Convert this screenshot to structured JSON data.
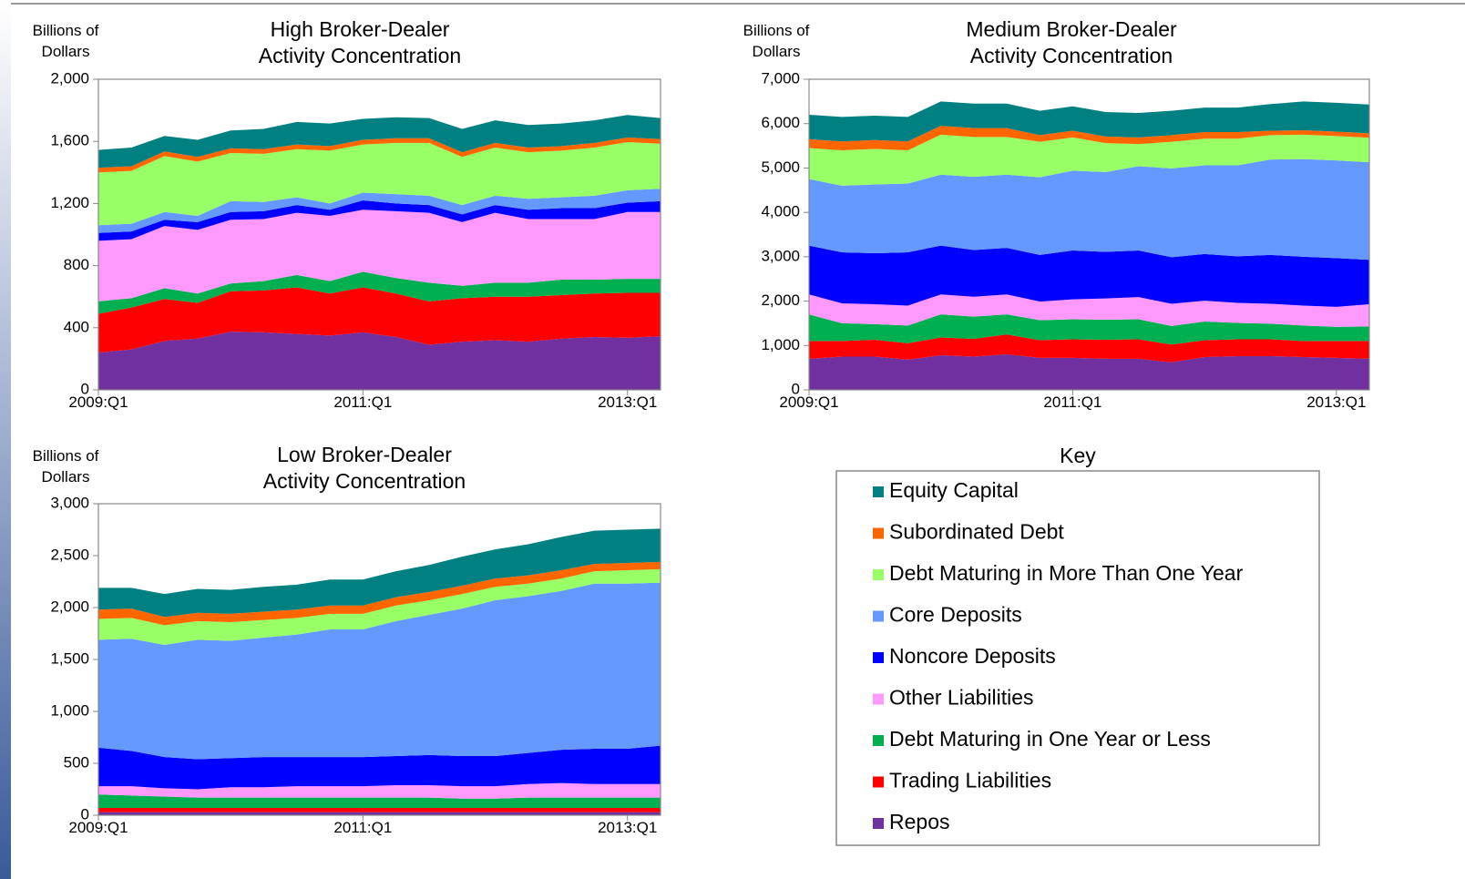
{
  "chart_data": [
    {
      "type": "stacked-area",
      "title": "High Broker-Dealer\nActivity Concentration",
      "ylabel": "Billions of\nDollars",
      "categories": [
        "2009:Q1",
        null,
        null,
        null,
        null,
        null,
        null,
        null,
        "2011:Q1",
        null,
        null,
        null,
        null,
        null,
        null,
        null,
        "2013:Q1",
        null
      ],
      "ylim": [
        0,
        2000
      ],
      "yticks": [
        0,
        400,
        800,
        {
          "value": 1200,
          "label": "1,200"
        },
        {
          "value": 1600,
          "label": "1,600"
        },
        {
          "value": 2000,
          "label": "2,000"
        }
      ],
      "series": [
        {
          "values": [
            115,
            120,
            100,
            110,
            115,
            130,
            145,
            145,
            135,
            135,
            130,
            150,
            145,
            145,
            145,
            145,
            145,
            135
          ]
        },
        {
          "values": [
            30,
            30,
            30,
            30,
            30,
            30,
            30,
            30,
            30,
            30,
            30,
            30,
            30,
            30,
            30,
            30,
            30,
            30
          ]
        },
        {
          "values": [
            340,
            340,
            360,
            350,
            310,
            310,
            310,
            340,
            310,
            330,
            340,
            310,
            310,
            300,
            300,
            310,
            310,
            290
          ]
        },
        {
          "values": [
            50,
            50,
            50,
            40,
            70,
            60,
            50,
            40,
            50,
            60,
            60,
            60,
            60,
            70,
            70,
            80,
            80,
            80
          ]
        },
        {
          "values": [
            50,
            50,
            40,
            50,
            50,
            50,
            50,
            40,
            60,
            50,
            50,
            50,
            50,
            60,
            70,
            70,
            60,
            70
          ]
        },
        {
          "values": [
            390,
            380,
            400,
            410,
            410,
            400,
            400,
            420,
            400,
            430,
            450,
            410,
            450,
            410,
            390,
            390,
            430,
            430
          ]
        },
        {
          "values": [
            80,
            60,
            70,
            60,
            50,
            60,
            80,
            80,
            100,
            100,
            120,
            80,
            90,
            90,
            100,
            90,
            90,
            90
          ]
        },
        {
          "values": [
            250,
            270,
            270,
            230,
            260,
            270,
            300,
            270,
            290,
            280,
            280,
            280,
            280,
            290,
            280,
            280,
            290,
            280
          ]
        },
        {
          "values": [
            240,
            260,
            315,
            330,
            375,
            370,
            360,
            350,
            370,
            340,
            290,
            310,
            320,
            310,
            330,
            340,
            335,
            345
          ]
        }
      ]
    },
    {
      "type": "stacked-area",
      "title": "Medium Broker-Dealer\nActivity Concentration",
      "ylabel": "Billions of\nDollars",
      "categories": [
        "2009:Q1",
        null,
        null,
        null,
        null,
        null,
        null,
        null,
        "2011:Q1",
        null,
        null,
        null,
        null,
        null,
        null,
        null,
        "2013:Q1",
        null
      ],
      "ylim": [
        0,
        7000
      ],
      "yticks": [
        0,
        {
          "value": 1000,
          "label": "1,000"
        },
        {
          "value": 2000,
          "label": "2,000"
        },
        {
          "value": 3000,
          "label": "3,000"
        },
        {
          "value": 4000,
          "label": "4,000"
        },
        {
          "value": 5000,
          "label": "5,000"
        },
        {
          "value": 6000,
          "label": "6,000"
        },
        {
          "value": 7000,
          "label": "7,000"
        }
      ],
      "series": [
        {
          "values": [
            550,
            550,
            550,
            550,
            550,
            550,
            550,
            550,
            550,
            550,
            550,
            550,
            550,
            550,
            600,
            650,
            650,
            650
          ]
        },
        {
          "values": [
            200,
            200,
            200,
            200,
            200,
            200,
            200,
            150,
            150,
            150,
            150,
            150,
            150,
            150,
            100,
            100,
            100,
            100
          ]
        },
        {
          "values": [
            700,
            800,
            800,
            750,
            900,
            900,
            850,
            800,
            750,
            650,
            500,
            600,
            600,
            600,
            550,
            550,
            550,
            550
          ]
        },
        {
          "values": [
            1500,
            1500,
            1550,
            1550,
            1600,
            1650,
            1650,
            1750,
            1800,
            1800,
            1900,
            2000,
            2000,
            2050,
            2150,
            2200,
            2200,
            2200
          ]
        },
        {
          "values": [
            1100,
            1150,
            1150,
            1200,
            1100,
            1050,
            1050,
            1050,
            1100,
            1050,
            1050,
            1050,
            1050,
            1050,
            1100,
            1100,
            1100,
            1000
          ]
        },
        {
          "values": [
            450,
            450,
            450,
            450,
            450,
            450,
            450,
            420,
            450,
            480,
            500,
            500,
            470,
            450,
            450,
            450,
            450,
            500
          ]
        },
        {
          "values": [
            600,
            400,
            350,
            400,
            520,
            500,
            450,
            450,
            450,
            450,
            450,
            420,
            420,
            370,
            350,
            350,
            320,
            330
          ]
        },
        {
          "values": [
            400,
            350,
            380,
            370,
            400,
            400,
            450,
            400,
            420,
            430,
            440,
            400,
            380,
            380,
            380,
            360,
            380,
            400
          ]
        },
        {
          "values": [
            700,
            750,
            750,
            680,
            780,
            750,
            800,
            720,
            720,
            700,
            700,
            620,
            740,
            760,
            760,
            740,
            720,
            700
          ]
        }
      ]
    },
    {
      "type": "stacked-area",
      "title": "Low Broker-Dealer\nActivity Concentration",
      "ylabel": "Billions of\nDollars",
      "categories": [
        "2009:Q1",
        null,
        null,
        null,
        null,
        null,
        null,
        null,
        "2011:Q1",
        null,
        null,
        null,
        null,
        null,
        null,
        null,
        "2013:Q1",
        null
      ],
      "ylim": [
        0,
        3000
      ],
      "yticks": [
        0,
        500,
        {
          "value": 1000,
          "label": "1,000"
        },
        {
          "value": 1500,
          "label": "1,500"
        },
        {
          "value": 2000,
          "label": "2,000"
        },
        {
          "value": 2500,
          "label": "2,500"
        },
        {
          "value": 3000,
          "label": "3,000"
        }
      ],
      "series": [
        {
          "values": [
            210,
            200,
            220,
            230,
            230,
            240,
            240,
            250,
            250,
            250,
            260,
            280,
            280,
            300,
            320,
            320,
            320,
            320
          ]
        },
        {
          "values": [
            90,
            90,
            80,
            80,
            80,
            80,
            80,
            80,
            80,
            80,
            80,
            80,
            80,
            80,
            80,
            70,
            70,
            70
          ]
        },
        {
          "values": [
            200,
            200,
            190,
            180,
            180,
            170,
            160,
            150,
            150,
            150,
            140,
            140,
            130,
            120,
            120,
            120,
            130,
            130
          ]
        },
        {
          "values": [
            1040,
            1080,
            1080,
            1150,
            1130,
            1150,
            1180,
            1230,
            1230,
            1300,
            1350,
            1420,
            1500,
            1510,
            1530,
            1590,
            1590,
            1570
          ]
        },
        {
          "values": [
            370,
            340,
            300,
            290,
            280,
            290,
            280,
            280,
            280,
            280,
            290,
            290,
            290,
            300,
            320,
            340,
            340,
            370
          ]
        },
        {
          "values": [
            80,
            90,
            80,
            80,
            100,
            100,
            110,
            110,
            110,
            120,
            120,
            120,
            120,
            130,
            140,
            130,
            130,
            130
          ]
        },
        {
          "values": [
            130,
            120,
            110,
            100,
            100,
            100,
            100,
            100,
            100,
            100,
            100,
            90,
            90,
            100,
            100,
            100,
            100,
            100
          ]
        },
        {
          "values": [
            40,
            40,
            40,
            40,
            40,
            40,
            40,
            40,
            40,
            40,
            40,
            40,
            40,
            40,
            40,
            40,
            40,
            40
          ]
        },
        {
          "values": [
            30,
            30,
            30,
            30,
            30,
            30,
            30,
            30,
            30,
            30,
            30,
            30,
            30,
            30,
            30,
            30,
            30,
            30
          ]
        }
      ]
    }
  ],
  "key": {
    "title": "Key",
    "series": [
      {
        "name": "Equity Capital",
        "color": "#008080"
      },
      {
        "name": "Subordinated Debt",
        "color": "#ff6600"
      },
      {
        "name": "Debt Maturing in More Than One Year",
        "color": "#99ff66"
      },
      {
        "name": "Core Deposits",
        "color": "#6699ff"
      },
      {
        "name": "Noncore Deposits",
        "color": "#0000ff"
      },
      {
        "name": "Other Liabilities",
        "color": "#ff99ff"
      },
      {
        "name": "Debt Maturing in One Year or Less",
        "color": "#00b050"
      },
      {
        "name": "Trading Liabilities",
        "color": "#ff0000"
      },
      {
        "name": "Repos",
        "color": "#7030a0"
      }
    ]
  }
}
